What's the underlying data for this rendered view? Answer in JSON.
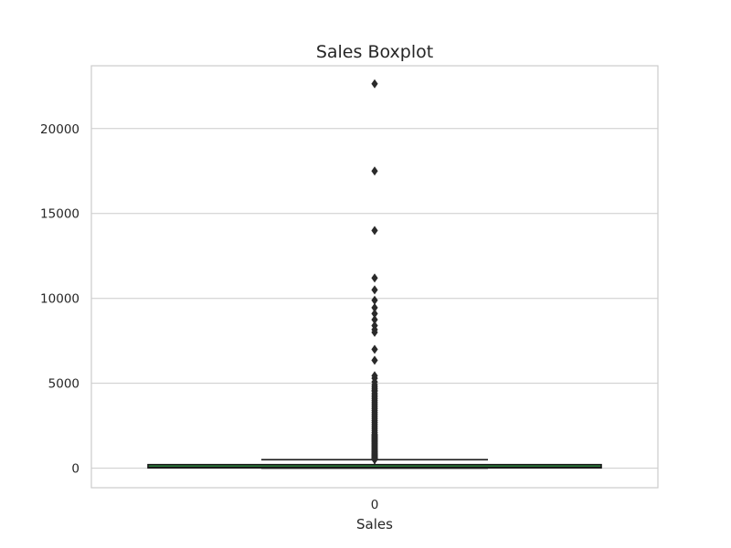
{
  "chart_data": {
    "type": "box",
    "title": "Sales Boxplot",
    "xlabel": "Sales",
    "ylabel": "",
    "categories": [
      "0"
    ],
    "ylim": [
      -1150,
      23700
    ],
    "y_ticks": [
      0,
      5000,
      10000,
      15000,
      20000
    ],
    "grid": true,
    "box": {
      "whisker_low": 0.44,
      "q1": 17.3,
      "median": 54.5,
      "q3": 209.9,
      "whisker_high": 498.9
    },
    "outliers": [
      22638,
      17500,
      13999,
      11199,
      10499,
      9892,
      9450,
      9100,
      8750,
      8400,
      8159,
      7999,
      6999,
      6354,
      5443,
      5300,
      5084,
      4912,
      4800,
      4700,
      4600,
      4535,
      4410,
      4300,
      4200,
      4100,
      4000,
      3900,
      3800,
      3700,
      3600,
      3500,
      3400,
      3300,
      3200,
      3100,
      3000,
      2900,
      2800,
      2700,
      2600,
      2500,
      2400,
      2300,
      2200,
      2100,
      2000,
      1950,
      1900,
      1850,
      1800,
      1750,
      1700,
      1650,
      1600,
      1550,
      1500,
      1450,
      1400,
      1350,
      1300,
      1250,
      1200,
      1150,
      1100,
      1050,
      1000,
      960,
      920,
      880,
      840,
      800,
      770,
      740,
      710,
      680,
      650,
      620,
      600,
      580,
      560,
      540,
      520,
      505
    ],
    "colors": {
      "box_fill": "#2b8a3e",
      "box_edge": "#1a1a1a",
      "outlier": "#2a2a2a",
      "grid": "#cccccc",
      "frame": "#cccccc"
    }
  }
}
